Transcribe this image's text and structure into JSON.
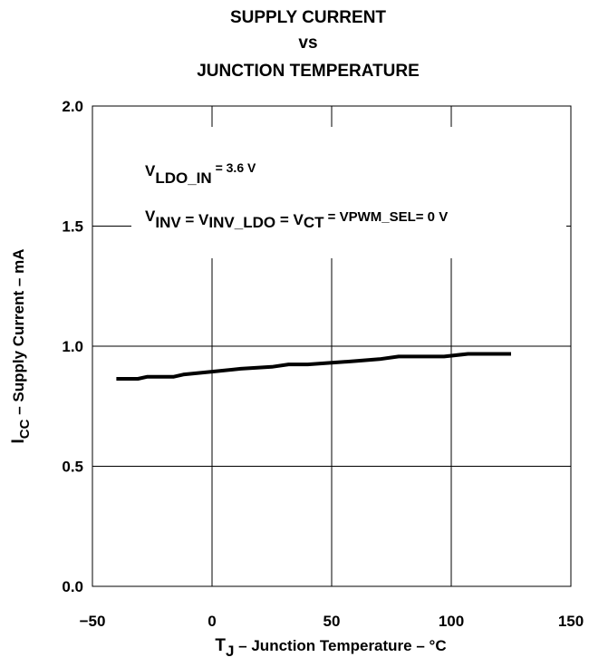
{
  "chart_data": {
    "type": "line",
    "title": [
      "SUPPLY CURRENT",
      "vs",
      "JUNCTION TEMPERATURE"
    ],
    "xlabel": {
      "main": "T",
      "sub": "J",
      "rest": " – Junction Temperature – °C"
    },
    "ylabel": {
      "main": "I",
      "sub": "CC",
      "rest": " – Supply Current – mA"
    },
    "xlim": [
      -50,
      150
    ],
    "ylim": [
      0,
      2
    ],
    "x_ticks": [
      -50,
      0,
      50,
      100,
      150
    ],
    "y_ticks": [
      0,
      0.5,
      1,
      1.5,
      2
    ],
    "x_tick_labels": [
      "−50",
      "0",
      "50",
      "100",
      "150"
    ],
    "y_tick_labels": [
      "0.0",
      "0.5",
      "1.0",
      "1.5",
      "2.0"
    ],
    "grid": true,
    "series": [
      {
        "color": "#000000",
        "x": [
          -40,
          -31,
          -27,
          -16,
          -12,
          0,
          12,
          25,
          32,
          40,
          50,
          60,
          70,
          78,
          90,
          97,
          107,
          125
        ],
        "y": [
          0.864,
          0.864,
          0.873,
          0.873,
          0.882,
          0.894,
          0.906,
          0.914,
          0.924,
          0.924,
          0.931,
          0.938,
          0.946,
          0.957,
          0.957,
          0.957,
          0.968,
          0.968
        ]
      }
    ],
    "annotations": {
      "line1": {
        "main": "V",
        "sub": "LDO_IN",
        "rest": " = 3.6 V"
      },
      "line2": {
        "v1": "V",
        "s1": "INV",
        "e1": " = V",
        "s2": "INV_LDO",
        "e2": " = V",
        "s3": "CT",
        "e3": " =  VPWM_SEL= 0 V"
      }
    }
  }
}
